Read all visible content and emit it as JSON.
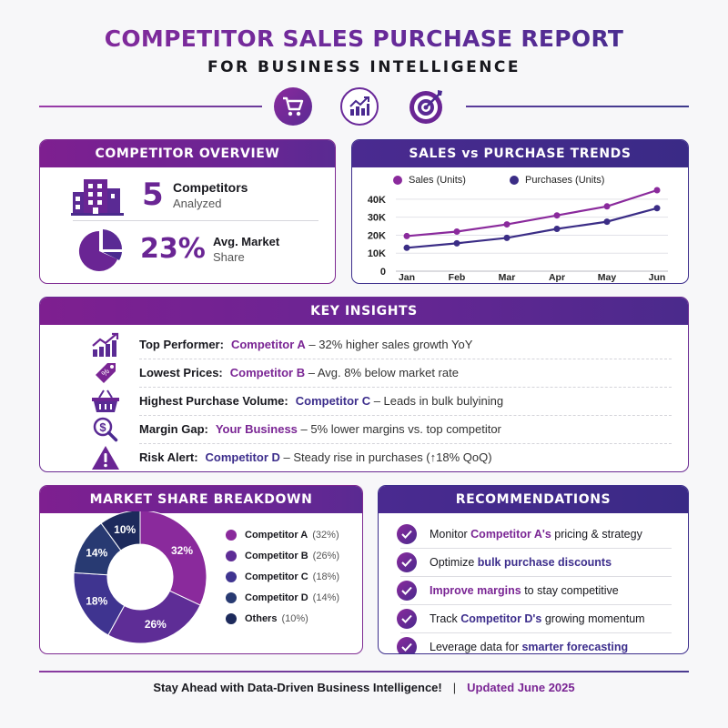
{
  "header": {
    "title": "COMPETITOR SALES PURCHASE REPORT",
    "subtitle": "FOR BUSINESS INTELLIGENCE",
    "icons": [
      "shopping-cart-icon",
      "growth-chart-icon",
      "target-icon"
    ]
  },
  "overview": {
    "title": "COMPETITOR OVERVIEW",
    "stats": [
      {
        "icon": "building-icon",
        "value": "5",
        "label": "Competitors",
        "sublabel": "Analyzed"
      },
      {
        "icon": "pie-chart-icon",
        "value": "23%",
        "label": "Avg. Market",
        "sublabel": "Share"
      }
    ]
  },
  "trends": {
    "title": "SALES vs PURCHASE TRENDS",
    "legend": [
      "Sales (Units)",
      "Purchases (Units)"
    ],
    "y_ticks": [
      "40K",
      "30K",
      "20K",
      "10K",
      "0"
    ],
    "x_ticks": [
      "Jan",
      "Feb",
      "Mar",
      "Apr",
      "May",
      "Jun"
    ]
  },
  "insights": {
    "title": "KEY INSIGHTS",
    "items": [
      {
        "icon": "growth-chart-icon",
        "key": "Top Performer:",
        "entity": "Competitor A",
        "entity_color": "#7a2594",
        "detail": " – 32% higher sales growth YoY"
      },
      {
        "icon": "price-tag-icon",
        "key": "Lowest Prices:",
        "entity": "Competitor B",
        "entity_color": "#7a2594",
        "detail": " – Avg. 8% below market rate"
      },
      {
        "icon": "basket-icon",
        "key": "Highest Purchase Volume:",
        "entity": "Competitor C",
        "entity_color": "#3d2e8c",
        "detail": " – Leads in bulk bulyining"
      },
      {
        "icon": "dollar-search-icon",
        "key": "Margin Gap:",
        "entity": "Your Business",
        "entity_color": "#7a2594",
        "detail": " – 5% lower margins vs. top competitor"
      },
      {
        "icon": "warning-icon",
        "key": "Risk Alert:",
        "entity": "Competitor D",
        "entity_color": "#3d2e8c",
        "detail": " – Steady rise in purchases (↑18% QoQ)"
      }
    ]
  },
  "market_share": {
    "title": "MARKET SHARE BREAKDOWN",
    "legend": [
      {
        "name": "Competitor A",
        "pct": "(32%)",
        "color": "#8a2a9c"
      },
      {
        "name": "Competitor B",
        "pct": "(26%)",
        "color": "#5e2d96"
      },
      {
        "name": "Competitor C",
        "pct": "(18%)",
        "color": "#3f3490"
      },
      {
        "name": "Competitor D",
        "pct": "(14%)",
        "color": "#283a72"
      },
      {
        "name": "Others",
        "pct": "(10%)",
        "color": "#1d2a5c"
      }
    ],
    "slice_labels": [
      "32%",
      "26%",
      "18%",
      "14%",
      "10%"
    ]
  },
  "recommendations": {
    "title": "RECOMMENDATIONS",
    "items": [
      {
        "pre": "Monitor ",
        "hl": "Competitor A's",
        "hl_color": "#7a2594",
        "post": " pricing & strategy"
      },
      {
        "pre": "Optimize ",
        "hl": "bulk purchase discounts",
        "hl_color": "#3d2e8c",
        "post": ""
      },
      {
        "pre": "",
        "hl": "Improve margins",
        "hl_color": "#7a2594",
        "post": " to stay competitive"
      },
      {
        "pre": "Track ",
        "hl": "Competitor D's",
        "hl_color": "#3d2e8c",
        "post": " growing momentum"
      },
      {
        "pre": "Leverage data for ",
        "hl": "smarter forecasting",
        "hl_color": "#3d2e8c",
        "post": ""
      }
    ]
  },
  "footer": {
    "tagline": "Stay Ahead with Data-Driven Business Intelligence!",
    "separator": "|",
    "updated": "Updated June 2025"
  },
  "colors": {
    "purple": "#7e1f90",
    "indigo": "#3d2e8c",
    "sales_line": "#8a2a9c",
    "purchases_line": "#3b2d86"
  },
  "chart_data": [
    {
      "type": "line",
      "title": "SALES vs PURCHASE TRENDS",
      "x": [
        "Jan",
        "Feb",
        "Mar",
        "Apr",
        "May",
        "Jun"
      ],
      "series": [
        {
          "name": "Sales (Units)",
          "values": [
            19500,
            22000,
            26000,
            31000,
            36000,
            45000
          ]
        },
        {
          "name": "Purchases (Units)",
          "values": [
            13000,
            15500,
            18500,
            23500,
            27500,
            35000
          ]
        }
      ],
      "xlabel": "",
      "ylabel": "",
      "yticks": [
        "0",
        "10K",
        "20K",
        "30K",
        "40K"
      ],
      "ylim": [
        0,
        45000
      ],
      "grid": true,
      "legend_position": "top"
    },
    {
      "type": "pie",
      "title": "MARKET SHARE BREAKDOWN",
      "categories": [
        "Competitor A",
        "Competitor B",
        "Competitor C",
        "Competitor D",
        "Others"
      ],
      "values": [
        32,
        26,
        18,
        14,
        10
      ],
      "donut": true,
      "legend_position": "right"
    }
  ]
}
